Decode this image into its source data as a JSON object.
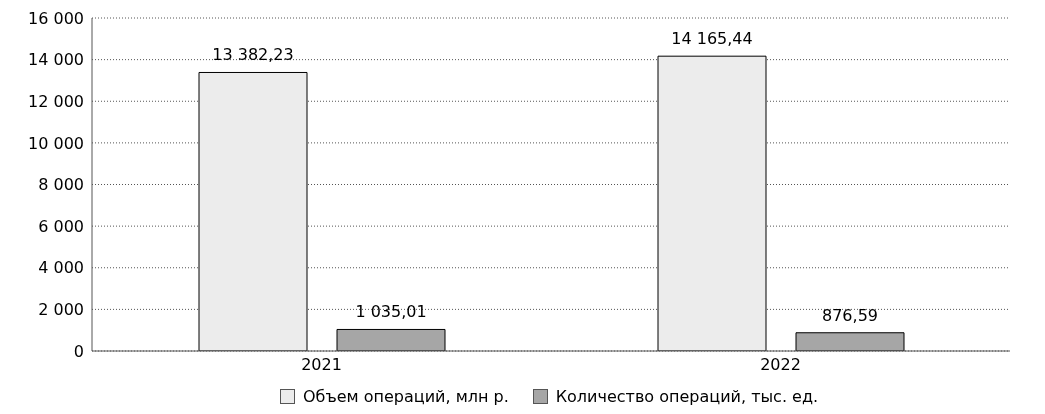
{
  "chart_data": {
    "type": "bar",
    "categories": [
      "2021",
      "2022"
    ],
    "series": [
      {
        "name": "Объем операций, млн р.",
        "color": "#ececec",
        "values": [
          13382.23,
          14165.44
        ],
        "value_labels": [
          "13 382,23",
          "14 165,44"
        ]
      },
      {
        "name": "Количество операций, тыс. ед.",
        "color": "#a6a6a6",
        "values": [
          1035.01,
          876.59
        ],
        "value_labels": [
          "1 035,01",
          "876,59"
        ]
      }
    ],
    "ylim": [
      0,
      16000
    ],
    "yticks": [
      {
        "value": 0,
        "label": "0"
      },
      {
        "value": 2000,
        "label": "2 000"
      },
      {
        "value": 4000,
        "label": "4 000"
      },
      {
        "value": 6000,
        "label": "6 000"
      },
      {
        "value": 8000,
        "label": "8 000"
      },
      {
        "value": 10000,
        "label": "10 000"
      },
      {
        "value": 12000,
        "label": "12 000"
      },
      {
        "value": 14000,
        "label": "14 000"
      },
      {
        "value": 16000,
        "label": "16 000"
      }
    ],
    "grid": "y",
    "legend": "bottom"
  }
}
